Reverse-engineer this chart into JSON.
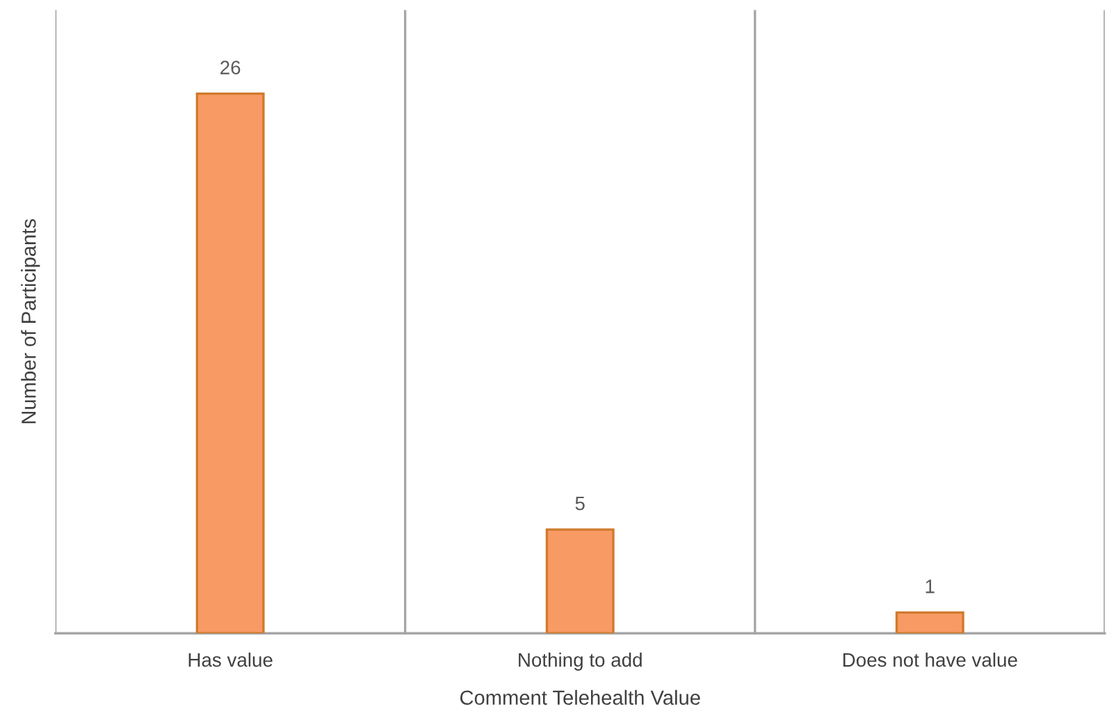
{
  "chart_data": {
    "type": "bar",
    "xlabel": "Comment Telehealth Value",
    "ylabel": "Number of Participants",
    "categories": [
      "Has value",
      "Nothing to add",
      "Does not have value"
    ],
    "values": [
      26,
      5,
      1
    ],
    "color": "#f79a63",
    "data_labels": true,
    "grid": "x"
  }
}
